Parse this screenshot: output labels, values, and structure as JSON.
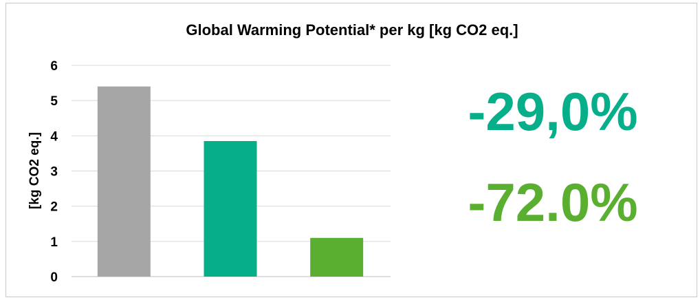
{
  "chart_data": {
    "type": "bar",
    "title": "Global Warming Potential* per kg [kg CO2 eq.]",
    "ylabel": "[kg CO2 eq.]",
    "xlabel": "",
    "ylim": [
      0,
      6
    ],
    "yticks": [
      0,
      1,
      2,
      3,
      4,
      5,
      6
    ],
    "grid": true,
    "categories": [
      "",
      "",
      ""
    ],
    "values": [
      5.4,
      3.85,
      1.1
    ],
    "colors": [
      "#a6a6a6",
      "#07ae8a",
      "#5aaf30"
    ]
  },
  "annotations": [
    {
      "text": "-29,0%",
      "color": "#07ae8a"
    },
    {
      "text": "-72.0%",
      "color": "#5aaf30"
    }
  ],
  "colors": {
    "grid": "#d9d9d9",
    "axis": "#bfbfbf",
    "frame": "#c8c8c8"
  }
}
